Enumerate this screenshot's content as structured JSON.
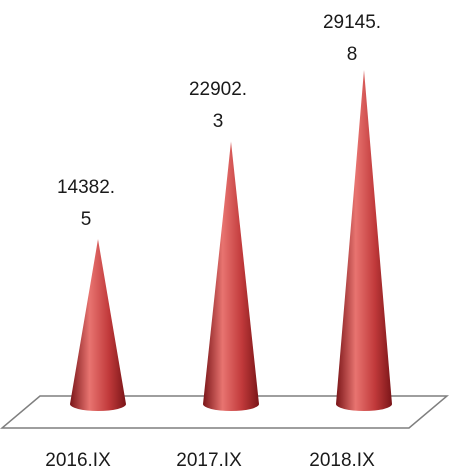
{
  "chart_data": {
    "type": "bar",
    "categories": [
      "2016.IX",
      "2017.IX",
      "2018.IX"
    ],
    "values": [
      14382.5,
      22902.3,
      29145.8
    ],
    "data_labels": [
      [
        "14382.",
        "5"
      ],
      [
        "22902.",
        "3"
      ],
      [
        "29145.",
        "8"
      ]
    ],
    "title": "",
    "xlabel": "",
    "ylabel": "",
    "ylim": [
      0,
      29145.8
    ],
    "grid": false,
    "legend": "none",
    "bar_shape": "cone",
    "colors": {
      "cone_light": "#e87470",
      "cone_mid": "#c0393a",
      "cone_dark": "#7a1518",
      "floor_stroke": "#7f7f7f"
    }
  }
}
